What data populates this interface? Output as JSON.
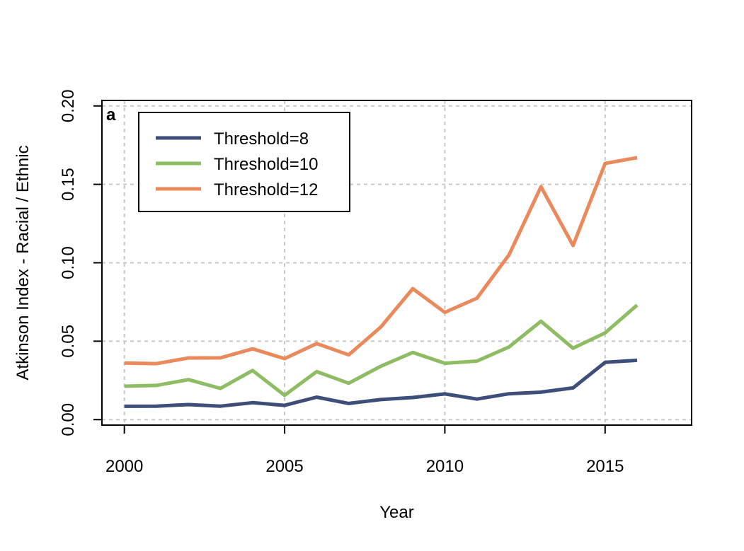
{
  "chart_data": {
    "type": "line",
    "title": "",
    "panel_label": "a",
    "xlabel": "Year",
    "ylabel": "Atkinson Index - Racial / Ethnic",
    "xlim": [
      1999.3,
      2017.7
    ],
    "ylim": [
      -0.0035,
      0.2035
    ],
    "x_ticks": [
      2000,
      2005,
      2010,
      2015
    ],
    "x_tick_labels": [
      "2000",
      "2005",
      "2010",
      "2015"
    ],
    "y_ticks": [
      0.0,
      0.05,
      0.1,
      0.15,
      0.2
    ],
    "y_tick_labels": [
      "0.00",
      "0.05",
      "0.10",
      "0.15",
      "0.20"
    ],
    "grid": true,
    "legend_position": "top-left",
    "x": [
      2000,
      2001,
      2002,
      2003,
      2004,
      2005,
      2006,
      2007,
      2008,
      2009,
      2010,
      2011,
      2012,
      2013,
      2014,
      2015,
      2016
    ],
    "series": [
      {
        "name": "Threshold=8",
        "color": "#3d4e7a",
        "values": [
          0.0085,
          0.0086,
          0.0096,
          0.0086,
          0.0108,
          0.0091,
          0.0143,
          0.0103,
          0.0128,
          0.0141,
          0.0164,
          0.0131,
          0.0165,
          0.0175,
          0.0202,
          0.0365,
          0.0378
        ]
      },
      {
        "name": "Threshold=10",
        "color": "#8dbc62",
        "values": [
          0.0213,
          0.0218,
          0.0255,
          0.0199,
          0.0313,
          0.0155,
          0.0306,
          0.0232,
          0.034,
          0.0428,
          0.0359,
          0.0373,
          0.0463,
          0.0627,
          0.0455,
          0.0553,
          0.073
        ]
      },
      {
        "name": "Threshold=12",
        "color": "#ea8a5c",
        "values": [
          0.0361,
          0.0357,
          0.0393,
          0.0394,
          0.0451,
          0.0389,
          0.0485,
          0.0413,
          0.059,
          0.0835,
          0.0684,
          0.0774,
          0.105,
          0.1485,
          0.111,
          0.1633,
          0.167
        ]
      }
    ]
  }
}
